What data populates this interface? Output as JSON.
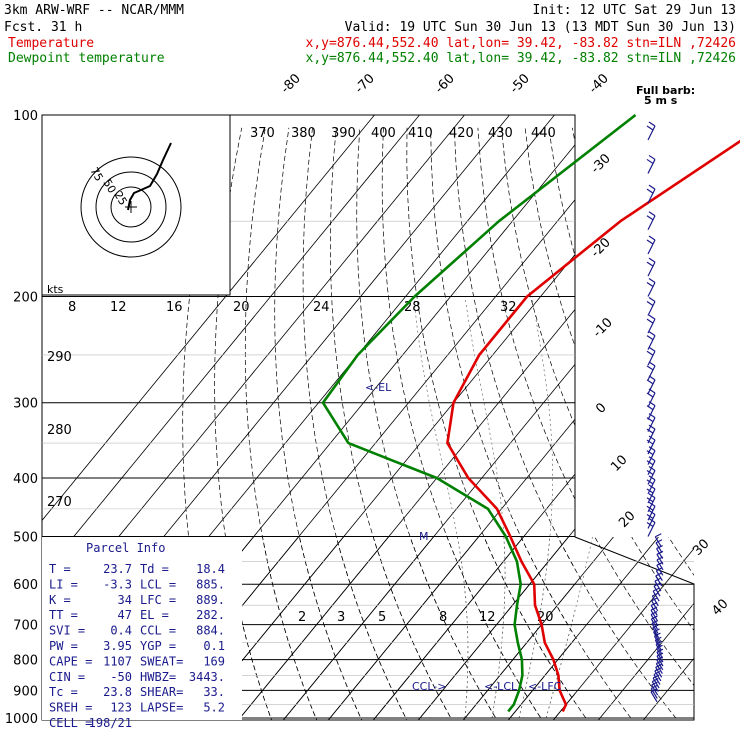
{
  "header": {
    "model": "3km ARW-WRF -- NCAR/MMM",
    "init": "Init: 12 UTC Sat 29 Jun 13",
    "fcst": "Fcst.   31 h",
    "valid": "Valid: 19 UTC Sun 30 Jun 13 (13 MDT Sun 30 Jun 13)",
    "temp_label": "Temperature",
    "temp_loc": "x,y=876.44,552.40   lat,lon= 39.42, -83.82  stn=ILN ,72426",
    "dew_label": "Dewpoint temperature",
    "dew_loc": "x,y=876.44,552.40   lat,lon= 39.42, -83.82  stn=ILN ,72426"
  },
  "colors": {
    "temperature": "#e00000",
    "dewpoint": "#008000",
    "parcel": "#1a1a8c",
    "grid": "#000000"
  },
  "chart_data": {
    "type": "line",
    "title": "",
    "ylabel": "",
    "xlabel": "",
    "pressure_levels": [
      100,
      200,
      300,
      400,
      500,
      600,
      700,
      800,
      900,
      1000
    ],
    "ylim": [
      1000,
      100
    ],
    "isotherm_labels": [
      "-80",
      "-70",
      "-60",
      "-50",
      "-40",
      "-30",
      "-20",
      "-10",
      "0",
      "10",
      "20",
      "30",
      "40"
    ],
    "theta_labels": [
      "370",
      "380",
      "390",
      "400",
      "410",
      "420",
      "430",
      "440",
      "290",
      "280",
      "270"
    ],
    "mixing_ratio_labels": [
      "2",
      "3",
      "5",
      "8",
      "12",
      "20"
    ],
    "hodograph": {
      "rings": [
        "25",
        "50",
        "75"
      ],
      "kts_label": "kts",
      "speed_labels": [
        "8",
        "12",
        "16",
        "20",
        "24",
        "28",
        "32"
      ]
    },
    "series": [
      {
        "name": "Temperature",
        "points": [
          [
            100,
            -30
          ],
          [
            150,
            -46
          ],
          [
            200,
            -53
          ],
          [
            250,
            -53
          ],
          [
            300,
            -50
          ],
          [
            350,
            -44
          ],
          [
            400,
            -33
          ],
          [
            450,
            -21
          ],
          [
            500,
            -13
          ],
          [
            550,
            -6
          ],
          [
            600,
            1
          ],
          [
            650,
            5
          ],
          [
            700,
            10
          ],
          [
            750,
            14
          ],
          [
            800,
            19
          ],
          [
            850,
            23
          ],
          [
            900,
            26
          ],
          [
            950,
            30
          ],
          [
            975,
            30.5
          ]
        ]
      },
      {
        "name": "Dewpoint temperature",
        "points": [
          [
            100,
            -62
          ],
          [
            150,
            -73
          ],
          [
            200,
            -78
          ],
          [
            250,
            -80
          ],
          [
            300,
            -79
          ],
          [
            350,
            -66
          ],
          [
            400,
            -40
          ],
          [
            450,
            -23
          ],
          [
            500,
            -14
          ],
          [
            550,
            -7
          ],
          [
            600,
            -2
          ],
          [
            650,
            1
          ],
          [
            700,
            4
          ],
          [
            750,
            8
          ],
          [
            800,
            12
          ],
          [
            850,
            15
          ],
          [
            900,
            17
          ],
          [
            950,
            18.4
          ],
          [
            975,
            18.4
          ]
        ]
      }
    ],
    "annotations": [
      "<-EL",
      "M",
      "CCL->",
      "<-LCL",
      "<-LFC"
    ],
    "parcel_info": {
      "title": "Parcel Info",
      "rows": [
        [
          "T  =",
          "23.7",
          "Td =",
          "18.4"
        ],
        [
          "LI =",
          "-3.3",
          "LCL =",
          "885."
        ],
        [
          "K  =",
          "34",
          "LFC =",
          "889."
        ],
        [
          "TT =",
          "47",
          "EL  =",
          "282."
        ],
        [
          "SVI =",
          "0.4",
          "CCL =",
          "884."
        ],
        [
          "PW =",
          "3.95",
          "YGP =",
          "0.1"
        ],
        [
          "CAPE =",
          "1107",
          "SWEAT=",
          "169"
        ],
        [
          "CIN =",
          "-50",
          "HWBZ=",
          "3443."
        ],
        [
          "Tc =",
          "23.8",
          "SHEAR=",
          "33."
        ],
        [
          "SREH =",
          "123",
          "LAPSE=",
          "5.2"
        ],
        [
          "CELL =",
          "198/21",
          "",
          ""
        ]
      ]
    },
    "wind_legend": {
      "line1": "Full barb:",
      "line2": "5 m s"
    }
  }
}
